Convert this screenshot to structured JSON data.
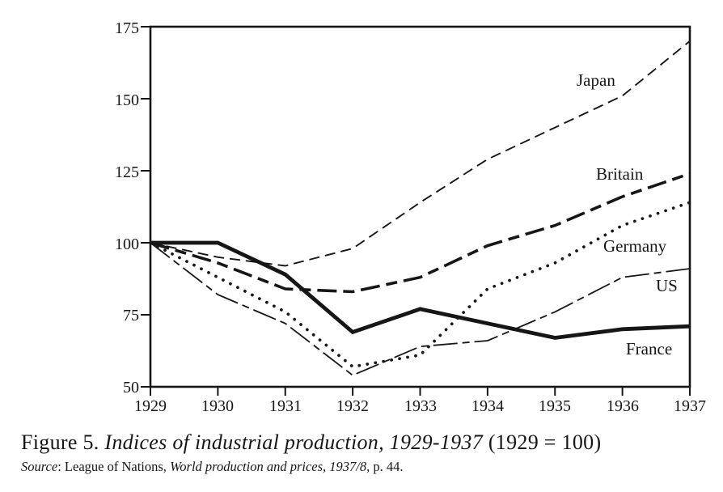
{
  "figure": {
    "caption_prefix": "Figure 5. ",
    "caption_title": "Indices of industrial production, 1929-1937",
    "caption_suffix": " (1929 = 100)",
    "source_label": "Source",
    "source_mid": ": League of Nations, ",
    "source_italic": "World production and prices, 1937/8",
    "source_end": ", p. 44."
  },
  "chart_data": {
    "type": "line",
    "title": "Indices of industrial production, 1929-1937 (1929 = 100)",
    "xlabel": "",
    "ylabel": "",
    "x": [
      1929,
      1930,
      1931,
      1932,
      1933,
      1934,
      1935,
      1936,
      1937
    ],
    "x_tick_labels": [
      "1929",
      "1930",
      "1931",
      "1932",
      "1933",
      "1934",
      "1935",
      "1936",
      "1937"
    ],
    "y_ticks": [
      175,
      150,
      125,
      100,
      75,
      50
    ],
    "y_tick_labels": [
      "175",
      "150",
      "125",
      "100",
      "75",
      "50"
    ],
    "ylim": [
      50,
      175
    ],
    "grid": false,
    "legend_position": "labels-on-lines",
    "series": [
      {
        "name": "Japan",
        "values": [
          100,
          95,
          92,
          98,
          114,
          129,
          140,
          151,
          170
        ],
        "line_style": "dashed-thin",
        "dash": "13 7",
        "width": 1.9,
        "linecap": "butt"
      },
      {
        "name": "Britain",
        "values": [
          100,
          93,
          84,
          83,
          88,
          99,
          106,
          116,
          124
        ],
        "line_style": "dashed-thick",
        "dash": "24 8 14 8",
        "width": 3.6,
        "linecap": "butt"
      },
      {
        "name": "Germany",
        "values": [
          100,
          88,
          76,
          57,
          61,
          84,
          93,
          106,
          114
        ],
        "line_style": "dotted",
        "dash": "0.1 10",
        "width": 3.7,
        "linecap": "round"
      },
      {
        "name": "US",
        "values": [
          100,
          82,
          72,
          54,
          64,
          66,
          76,
          88,
          91
        ],
        "line_style": "dash-dot-thin",
        "dash": "30 6 9 6",
        "width": 1.8,
        "linecap": "butt"
      },
      {
        "name": "France",
        "values": [
          100,
          100,
          89,
          69,
          77,
          72,
          67,
          70,
          71
        ],
        "line_style": "solid-thick",
        "dash": "",
        "width": 4.8,
        "linecap": "butt"
      }
    ],
    "colors": {
      "ink": "#161616",
      "paper": "#ffffff"
    }
  }
}
